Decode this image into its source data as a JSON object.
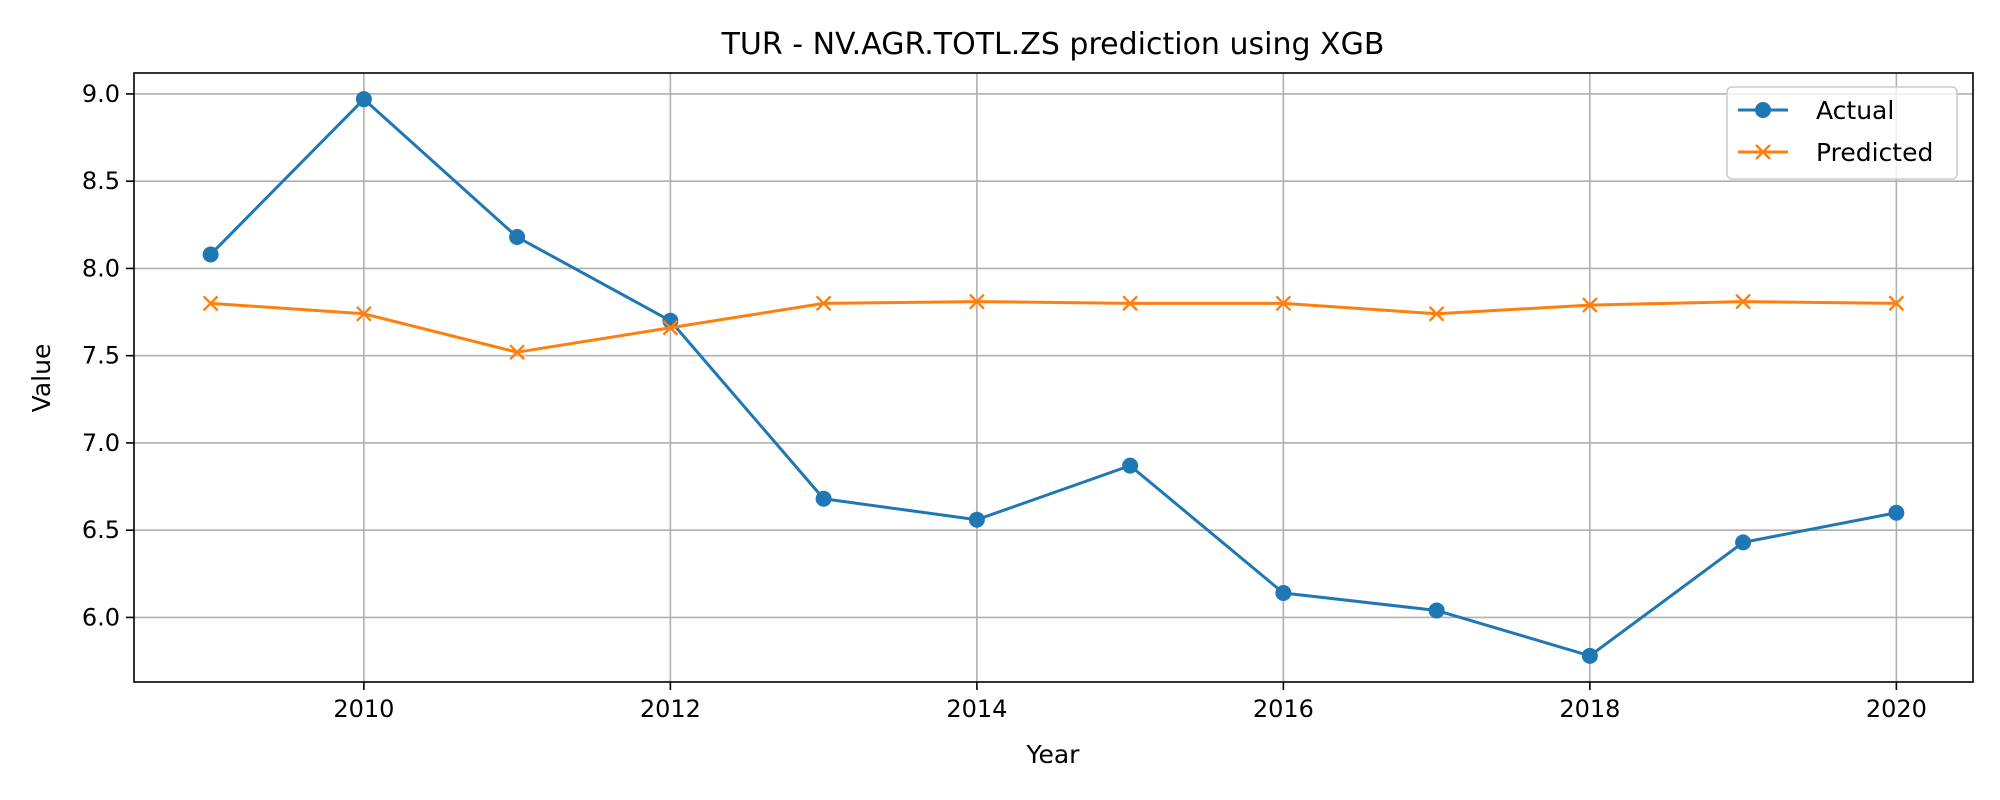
{
  "chart_data": {
    "type": "line",
    "title": "TUR - NV.AGR.TOTL.ZS prediction using XGB",
    "xlabel": "Year",
    "ylabel": "Value",
    "xlim": [
      2008.5,
      2020.5
    ],
    "ylim": [
      5.63,
      9.12
    ],
    "xticks": [
      2010,
      2012,
      2014,
      2016,
      2018,
      2020
    ],
    "xtick_labels": [
      "2010",
      "2012",
      "2014",
      "2016",
      "2018",
      "2020"
    ],
    "yticks": [
      6.0,
      6.5,
      7.0,
      7.5,
      8.0,
      8.5,
      9.0
    ],
    "ytick_labels": [
      "6.0",
      "6.5",
      "7.0",
      "7.5",
      "8.0",
      "8.5",
      "9.0"
    ],
    "grid": true,
    "legend_position": "top-right",
    "x": [
      2009,
      2010,
      2011,
      2012,
      2013,
      2014,
      2015,
      2016,
      2017,
      2018,
      2019,
      2020
    ],
    "series": [
      {
        "name": "Actual",
        "color": "#1f77b4",
        "marker": "circle",
        "values": [
          8.08,
          8.97,
          8.18,
          7.7,
          6.68,
          6.56,
          6.87,
          6.14,
          6.04,
          5.78,
          6.43,
          6.6
        ]
      },
      {
        "name": "Predicted",
        "color": "#ff7f0e",
        "marker": "x",
        "values": [
          7.8,
          7.74,
          7.52,
          7.66,
          7.8,
          7.81,
          7.8,
          7.8,
          7.74,
          7.79,
          7.81,
          7.8
        ]
      }
    ]
  }
}
